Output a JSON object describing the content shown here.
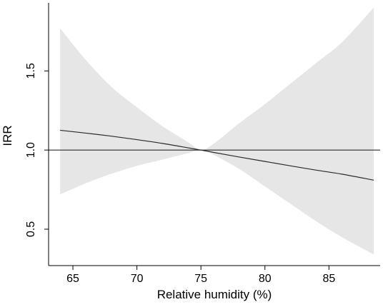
{
  "chart_data": {
    "type": "line",
    "xlabel": "Relative humidity (%)",
    "ylabel": "IRR",
    "xlim": [
      63.1,
      89.0
    ],
    "ylim": [
      0.27,
      1.93
    ],
    "x_ticks": [
      65,
      70,
      75,
      80,
      85
    ],
    "y_ticks": [
      0.5,
      1.0,
      1.5
    ],
    "x_tick_labels": [
      "65",
      "70",
      "75",
      "80",
      "85"
    ],
    "y_tick_labels": [
      "0.5",
      "1.0",
      "1.5"
    ],
    "reference_line": 1.0,
    "series": [
      {
        "x": [
          64.0,
          66.0,
          68.0,
          70.0,
          72.0,
          74.0,
          75.0,
          76.0,
          78.0,
          80.0,
          82.0,
          84.0,
          86.0,
          88.5
        ],
        "y": [
          1.125,
          1.107,
          1.088,
          1.066,
          1.042,
          1.014,
          1.0,
          0.985,
          0.956,
          0.928,
          0.9,
          0.873,
          0.848,
          0.81
        ],
        "lower": [
          0.72,
          0.79,
          0.85,
          0.9,
          0.94,
          0.98,
          1.0,
          0.97,
          0.88,
          0.77,
          0.66,
          0.55,
          0.45,
          0.34
        ],
        "upper": [
          1.77,
          1.57,
          1.4,
          1.27,
          1.15,
          1.05,
          1.0,
          1.04,
          1.17,
          1.29,
          1.42,
          1.55,
          1.68,
          1.9
        ]
      }
    ],
    "grid": false,
    "colors": {
      "band": "#e6e6e6",
      "line": "#2b2b2b",
      "reference": "#2b2b2b",
      "axis": "#000000"
    }
  }
}
